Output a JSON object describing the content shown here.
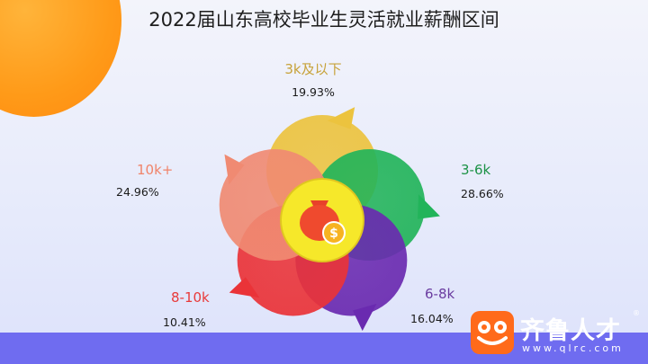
{
  "title": "2022届山东高校毕业生灵活就业薪酬区间",
  "logo": {
    "name": "齐鲁人才",
    "url": "www.qlrc.com",
    "reg": "®"
  },
  "chart_data": {
    "type": "pie",
    "title": "2022届山东高校毕业生灵活就业薪酬区间",
    "unit": "%",
    "categories": [
      "3k及以下",
      "3-6k",
      "6-8k",
      "8-10k",
      "10k+"
    ],
    "values": [
      19.93,
      28.66,
      16.04,
      10.41,
      24.96
    ],
    "labels": [
      "19.93%",
      "28.66%",
      "16.04%",
      "10.41%",
      "24.96%"
    ],
    "colors": [
      "#ecc33e",
      "#22b45a",
      "#6a2ab0",
      "#ea3338",
      "#f08a72"
    ],
    "label_colors": [
      "#c7a23a",
      "#1c9246",
      "#6a3ca0",
      "#e83a3a",
      "#f0846a"
    ],
    "center_icon": "money-bag-icon",
    "center_color": "#f6e82a"
  }
}
